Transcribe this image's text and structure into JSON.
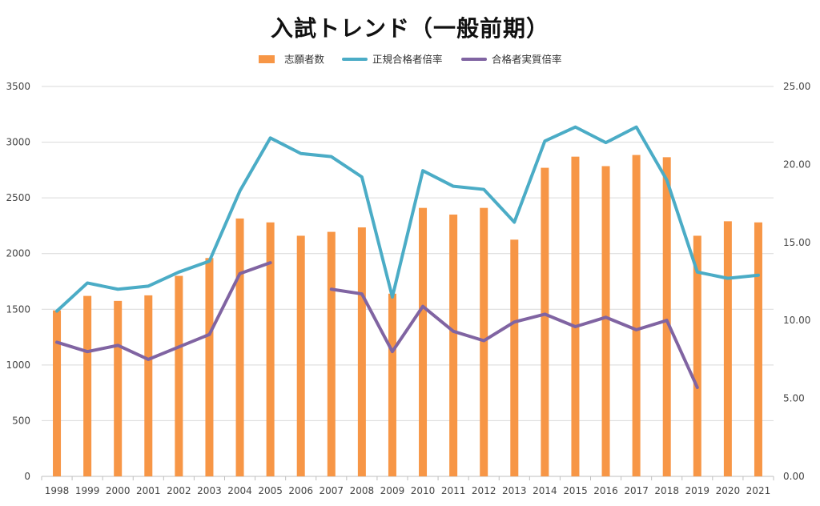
{
  "chart_data": {
    "type": "bar",
    "title": "入試トレンド（一般前期）",
    "categories": [
      "1998",
      "1999",
      "2000",
      "2001",
      "2002",
      "2003",
      "2004",
      "2005",
      "2006",
      "2007",
      "2008",
      "2009",
      "2010",
      "2011",
      "2012",
      "2013",
      "2014",
      "2015",
      "2016",
      "2017",
      "2018",
      "2019",
      "2020",
      "2021"
    ],
    "series": [
      {
        "name": "志願者数",
        "type": "bar",
        "axis": "left",
        "color": "#F79646",
        "values": [
          1490,
          1620,
          1575,
          1625,
          1800,
          1960,
          2315,
          2280,
          2160,
          2195,
          2235,
          1640,
          2410,
          2350,
          2410,
          2125,
          2770,
          2870,
          2785,
          2885,
          2865,
          2160,
          2290,
          2280
        ]
      },
      {
        "name": "正規合格者倍率",
        "type": "line",
        "axis": "right",
        "color": "#4BACC6",
        "values": [
          10.6,
          12.4,
          12.0,
          12.2,
          13.1,
          13.8,
          18.3,
          21.7,
          20.7,
          20.5,
          19.2,
          11.5,
          19.6,
          18.6,
          18.4,
          16.3,
          21.5,
          22.4,
          21.4,
          22.4,
          19.0,
          13.1,
          12.7,
          12.9
        ]
      },
      {
        "name": "合格者実質倍率",
        "type": "line",
        "axis": "right",
        "color": "#8064A2",
        "values": [
          8.6,
          8.0,
          8.4,
          7.5,
          8.3,
          9.1,
          13.0,
          13.7,
          null,
          12.0,
          11.7,
          8.0,
          10.9,
          9.3,
          8.7,
          9.9,
          10.4,
          9.6,
          10.2,
          9.4,
          10.0,
          5.7,
          null,
          null
        ]
      }
    ],
    "y_left": {
      "min": 0,
      "max": 3500,
      "step": 500,
      "tick_labels": [
        "0",
        "500",
        "1000",
        "1500",
        "2000",
        "2500",
        "3000",
        "3500"
      ]
    },
    "y_right": {
      "min": 0,
      "max": 25,
      "step": 5,
      "tick_labels": [
        "0.00",
        "5.00",
        "10.00",
        "15.00",
        "20.00",
        "25.00"
      ]
    },
    "grid": true,
    "legend_position": "top"
  }
}
